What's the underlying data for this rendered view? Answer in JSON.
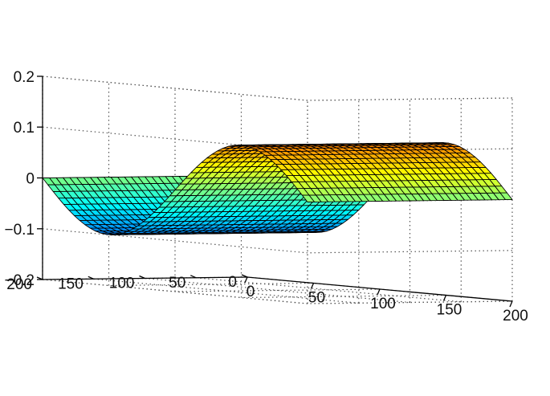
{
  "chart_data": {
    "type": "surface",
    "title": "",
    "xlabel": "",
    "ylabel": "",
    "zlabel": "",
    "grid": true,
    "colormap": "jet",
    "x": {
      "lim": [
        0,
        200
      ],
      "ticks": [
        0,
        50,
        100,
        150,
        200
      ],
      "tick_labels": [
        "0",
        "50",
        "100",
        "150",
        "200"
      ]
    },
    "y": {
      "lim": [
        0,
        200
      ],
      "ticks": [
        0,
        50,
        100,
        150,
        200
      ],
      "tick_labels": [
        "0",
        "50",
        "100",
        "150",
        "200"
      ]
    },
    "z": {
      "lim": [
        -0.2,
        0.2
      ],
      "ticks": [
        -0.2,
        -0.1,
        0,
        0.1,
        0.2
      ],
      "tick_labels": [
        "−0.2",
        "−0.1",
        "0",
        "0.1",
        "0.2"
      ]
    },
    "surface": {
      "function": "z = -A * sin(2*pi*x/200), constant along y",
      "amplitude": 0.1,
      "period": 200,
      "samples_x": [
        0,
        12.5,
        25,
        37.5,
        50,
        62.5,
        75,
        87.5,
        100,
        112.5,
        125,
        137.5,
        150,
        162.5,
        175,
        187.5,
        200
      ],
      "z_along_x": [
        0.0,
        -0.038,
        -0.071,
        -0.092,
        -0.1,
        -0.092,
        -0.071,
        -0.038,
        0.0,
        0.038,
        0.071,
        0.092,
        0.1,
        0.092,
        0.071,
        0.038,
        0.0
      ]
    }
  }
}
